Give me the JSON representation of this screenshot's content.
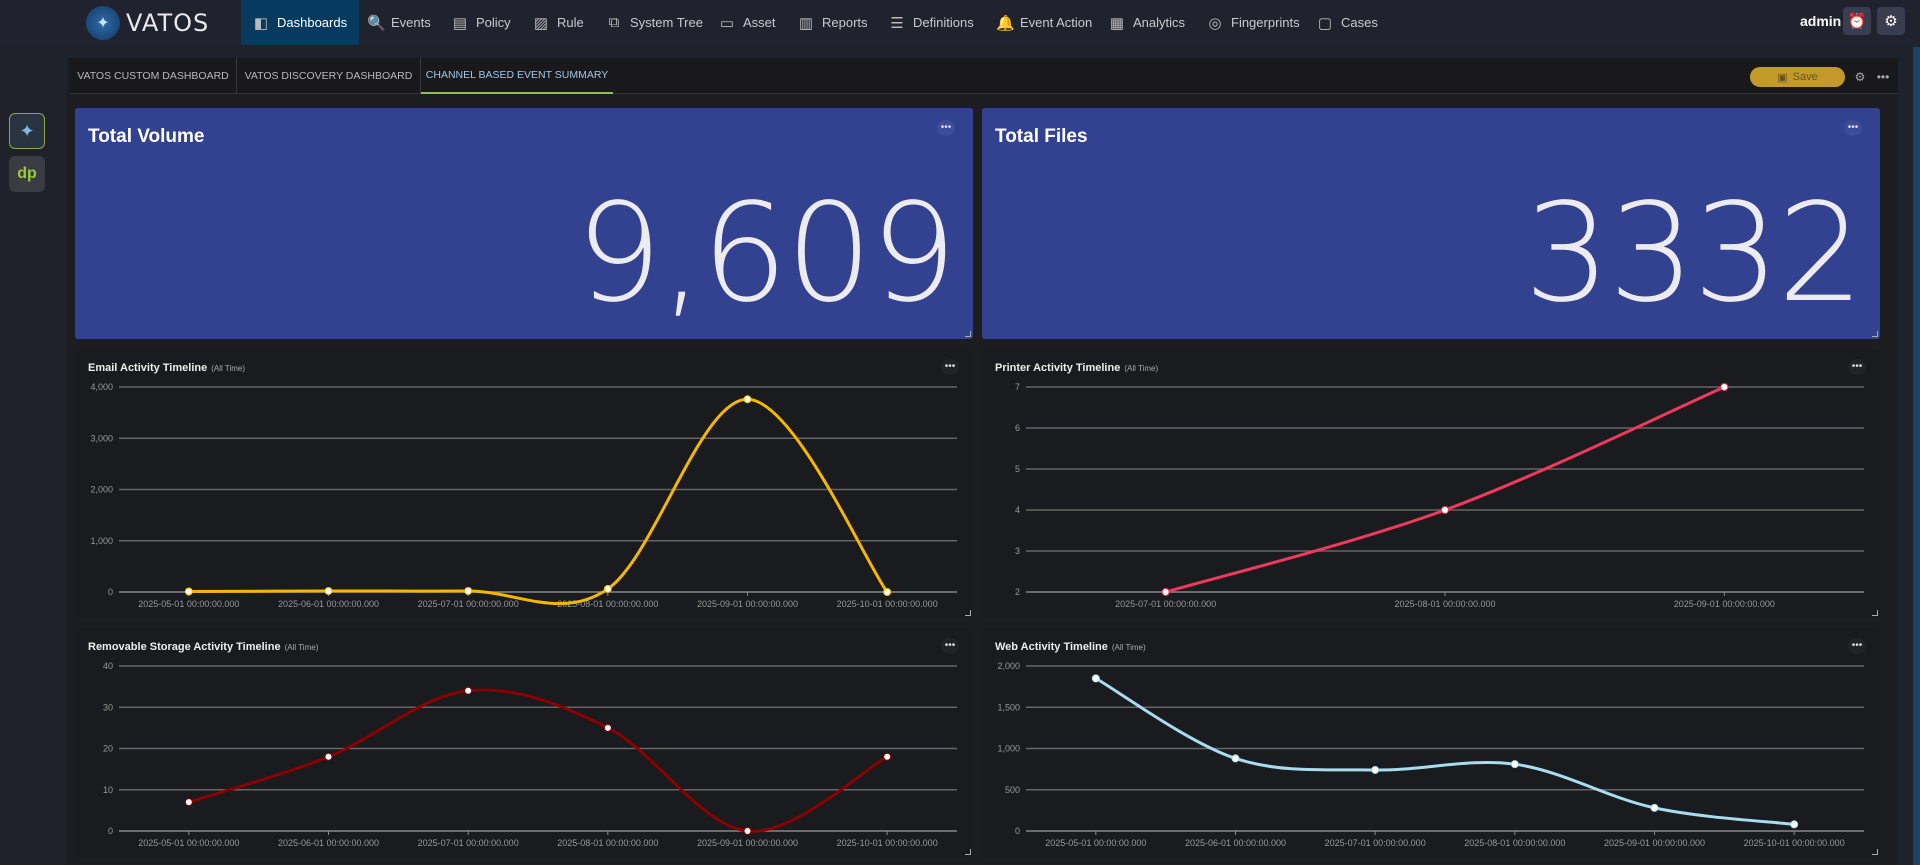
{
  "app": {
    "brand": "VATOS",
    "user": "admin"
  },
  "nav": [
    {
      "label": "Dashboards",
      "icon": "dashboard-icon",
      "active": true
    },
    {
      "label": "Events",
      "icon": "search-icon"
    },
    {
      "label": "Policy",
      "icon": "document-icon"
    },
    {
      "label": "Rule",
      "icon": "rule-icon"
    },
    {
      "label": "System Tree",
      "icon": "tree-icon"
    },
    {
      "label": "Asset",
      "icon": "monitor-icon"
    },
    {
      "label": "Reports",
      "icon": "report-icon"
    },
    {
      "label": "Definitions",
      "icon": "list-icon"
    },
    {
      "label": "Event Action",
      "icon": "bell-icon"
    },
    {
      "label": "Analytics",
      "icon": "analytics-icon"
    },
    {
      "label": "Fingerprints",
      "icon": "fingerprint-icon"
    },
    {
      "label": "Cases",
      "icon": "briefcase-icon"
    }
  ],
  "tabs": [
    {
      "label": "VATOS CUSTOM DASHBOARD"
    },
    {
      "label": "VATOS DISCOVERY DASHBOARD"
    },
    {
      "label": "CHANNEL BASED EVENT SUMMARY",
      "active": true
    }
  ],
  "toolbar": {
    "save_label": "Save"
  },
  "stats": [
    {
      "title": "Total Volume",
      "value": "9,609"
    },
    {
      "title": "Total Files",
      "value": "3332"
    }
  ],
  "colors": {
    "stat_bg": "#334191",
    "email": "#f5b800",
    "printer": "#f0395f",
    "removable": "#8b0000",
    "web": "#a8dcf0"
  },
  "chart_data": [
    {
      "type": "line",
      "title": "Email Activity Timeline",
      "subtitle": "(All Time)",
      "color": "#f5b800",
      "x": [
        "2025-05-01 00:00:00.000",
        "2025-06-01 00:00:00.000",
        "2025-07-01 00:00:00.000",
        "2025-08-01 00:00:00.000",
        "2025-09-01 00:00:00.000",
        "2025-10-01 00:00:00.000"
      ],
      "values": [
        10,
        20,
        20,
        60,
        3760,
        0
      ],
      "ylim": [
        0,
        4000
      ],
      "yticks": [
        "0",
        "1,000",
        "2,000",
        "3,000",
        "4,000"
      ],
      "grid": true
    },
    {
      "type": "line",
      "title": "Printer Activity Timeline",
      "subtitle": "(All Time)",
      "color": "#f0395f",
      "x": [
        "2025-07-01 00:00:00.000",
        "2025-08-01 00:00:00.000",
        "2025-09-01 00:00:00.000"
      ],
      "values": [
        2,
        4,
        7
      ],
      "ylim": [
        2,
        7
      ],
      "yticks": [
        "2",
        "3",
        "4",
        "5",
        "6",
        "7"
      ],
      "grid": true
    },
    {
      "type": "line",
      "title": "Removable Storage Activity Timeline",
      "subtitle": "(All Time)",
      "color": "#8b0000",
      "x": [
        "2025-05-01 00:00:00.000",
        "2025-06-01 00:00:00.000",
        "2025-07-01 00:00:00.000",
        "2025-08-01 00:00:00.000",
        "2025-09-01 00:00:00.000",
        "2025-10-01 00:00:00.000"
      ],
      "values": [
        7,
        18,
        34,
        25,
        0,
        18
      ],
      "ylim": [
        0,
        40
      ],
      "yticks": [
        "0",
        "10",
        "20",
        "30",
        "40"
      ],
      "grid": true
    },
    {
      "type": "line",
      "title": "Web Activity Timeline",
      "subtitle": "(All Time)",
      "color": "#a8dcf0",
      "x": [
        "2025-05-01 00:00:00.000",
        "2025-06-01 00:00:00.000",
        "2025-07-01 00:00:00.000",
        "2025-08-01 00:00:00.000",
        "2025-09-01 00:00:00.000",
        "2025-10-01 00:00:00.000"
      ],
      "values": [
        1850,
        880,
        740,
        810,
        280,
        80
      ],
      "ylim": [
        0,
        2000
      ],
      "yticks": [
        "0",
        "500",
        "1,000",
        "1,500",
        "2,000"
      ],
      "grid": true
    }
  ]
}
